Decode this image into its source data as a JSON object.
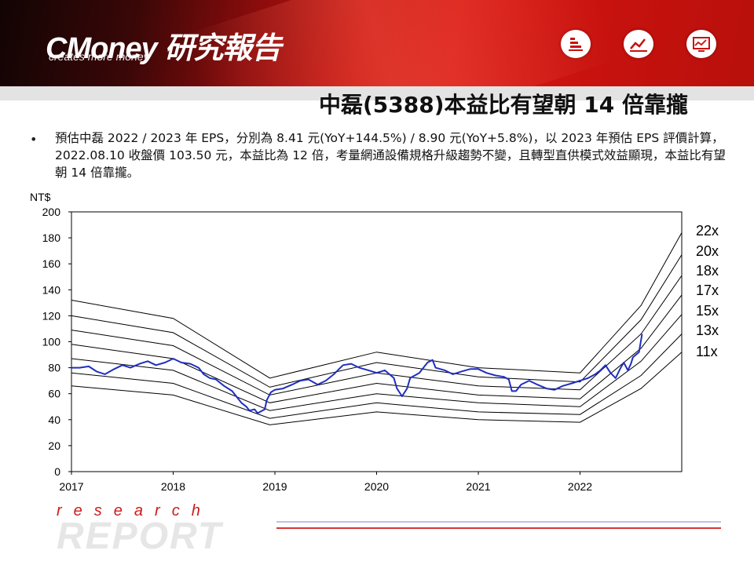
{
  "header": {
    "logo_text": "CMoney 研究報告",
    "tagline": "creates more money",
    "title": "中磊(5388)本益比有望朝 14 倍靠攏",
    "icons": [
      "list-chart-icon",
      "line-chart-icon",
      "monitor-chart-icon"
    ]
  },
  "bullet": {
    "text": "預估中磊 2022 / 2023 年 EPS，分別為 8.41 元(YoY+144.5%) / 8.90 元(YoY+5.8%)，以 2023 年預估 EPS 評價計算，2022.08.10 收盤價 103.50 元，本益比為 12 倍，考量網通設備規格升級趨勢不變，且轉型直供模式效益顯現，本益比有望朝 14 倍靠攏。"
  },
  "footer": {
    "research": "research",
    "report": "REPORT"
  },
  "colors": {
    "price_line": "#1f2fbf",
    "band_line": "#000000",
    "accent_red": "#cc1a1a"
  },
  "chart_data": {
    "type": "line",
    "title": "",
    "ylabel": "NT$",
    "xlabel": "",
    "ylim": [
      0,
      200
    ],
    "xlim": [
      2017,
      2023.0
    ],
    "yticks": [
      "0",
      "20",
      "40",
      "60",
      "80",
      "100",
      "120",
      "140",
      "160",
      "180",
      "200"
    ],
    "xticks": [
      "2017",
      "2018",
      "2019",
      "2020",
      "2021",
      "2022"
    ],
    "grid": false,
    "legend": "right-side band labels",
    "band_knots_x": [
      2017.0,
      2018.0,
      2018.95,
      2020.0,
      2021.0,
      2022.0,
      2022.6,
      2023.0
    ],
    "bands": [
      {
        "name": "22x",
        "values": [
          132,
          118,
          72,
          92,
          80,
          76,
          128,
          184
        ]
      },
      {
        "name": "20x",
        "values": [
          120,
          107,
          65,
          84,
          73,
          69,
          117,
          167
        ]
      },
      {
        "name": "18x",
        "values": [
          109,
          97,
          59,
          76,
          66,
          63,
          106,
          151
        ]
      },
      {
        "name": "17x",
        "values": [
          98,
          87,
          53,
          68,
          59,
          56,
          95,
          136
        ]
      },
      {
        "name": "15x",
        "values": [
          87,
          78,
          47,
          60,
          53,
          50,
          85,
          121
        ]
      },
      {
        "name": "13x",
        "values": [
          76,
          68,
          41,
          53,
          46,
          44,
          74,
          106
        ]
      },
      {
        "name": "11x",
        "values": [
          66,
          59,
          36,
          46,
          40,
          38,
          64,
          92
        ]
      }
    ],
    "series": [
      {
        "name": "",
        "x": [
          2017.0,
          2017.08,
          2017.17,
          2017.25,
          2017.33,
          2017.42,
          2017.5,
          2017.58,
          2017.67,
          2017.75,
          2017.83,
          2017.92,
          2018.0,
          2018.08,
          2018.17,
          2018.25,
          2018.3,
          2018.36,
          2018.42,
          2018.5,
          2018.58,
          2018.62,
          2018.67,
          2018.72,
          2018.75,
          2018.8,
          2018.83,
          2018.9,
          2018.92,
          2018.96,
          2019.0,
          2019.08,
          2019.17,
          2019.25,
          2019.33,
          2019.42,
          2019.5,
          2019.58,
          2019.63,
          2019.67,
          2019.75,
          2019.83,
          2019.92,
          2020.0,
          2020.08,
          2020.17,
          2020.2,
          2020.25,
          2020.3,
          2020.33,
          2020.42,
          2020.5,
          2020.55,
          2020.58,
          2020.67,
          2020.75,
          2020.83,
          2020.92,
          2021.0,
          2021.08,
          2021.17,
          2021.25,
          2021.3,
          2021.33,
          2021.37,
          2021.42,
          2021.5,
          2021.58,
          2021.67,
          2021.75,
          2021.83,
          2021.92,
          2022.0,
          2022.08,
          2022.15,
          2022.2,
          2022.25,
          2022.3,
          2022.35,
          2022.4,
          2022.43,
          2022.47,
          2022.5,
          2022.52,
          2022.55,
          2022.58,
          2022.61
        ],
        "values": [
          80,
          80,
          81,
          77,
          75,
          79,
          82,
          80,
          83,
          85,
          82,
          84,
          87,
          84,
          83,
          80,
          75,
          72,
          71,
          66,
          62,
          58,
          53,
          50,
          47,
          48,
          45,
          48,
          55,
          61,
          63,
          64,
          67,
          70,
          71,
          67,
          70,
          75,
          79,
          82,
          83,
          80,
          78,
          76,
          78,
          72,
          64,
          58,
          64,
          72,
          76,
          84,
          86,
          80,
          78,
          75,
          77,
          79,
          79,
          76,
          74,
          73,
          71,
          62,
          62,
          67,
          70,
          67,
          64,
          63,
          66,
          68,
          70,
          72,
          75,
          78,
          82,
          76,
          72,
          80,
          84,
          78,
          83,
          88,
          90,
          92,
          106
        ]
      }
    ]
  }
}
